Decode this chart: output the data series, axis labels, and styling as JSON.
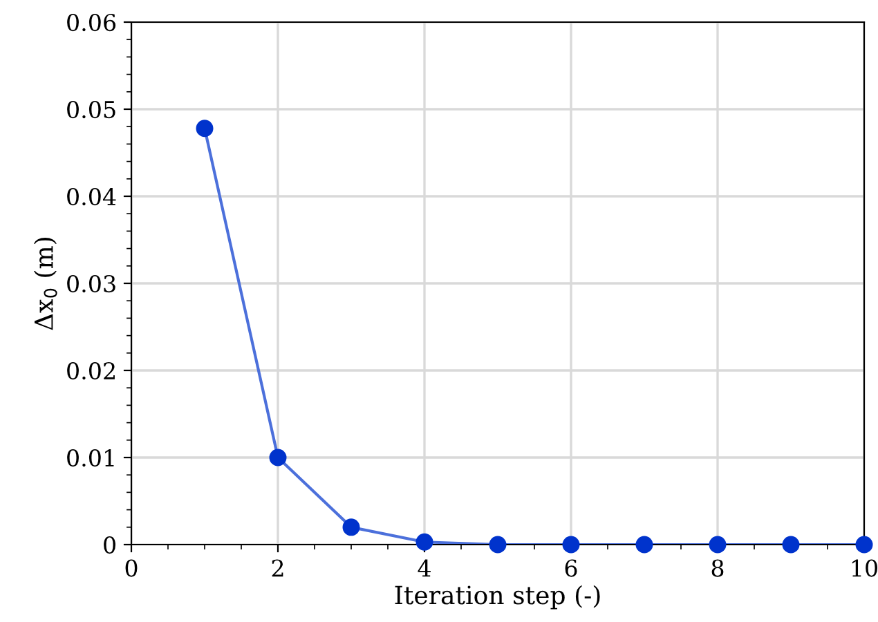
{
  "chart_data": {
    "type": "line",
    "xlabel": "Iteration step (-)",
    "ylabel": "Δx$_{0}$ (m)",
    "x": [
      1,
      2,
      3,
      4,
      5,
      6,
      7,
      8,
      9,
      10
    ],
    "series": [
      {
        "color": "#0033cc",
        "values": [
          0.0478,
          0.01,
          0.002,
          0.0003,
          0,
          0,
          0,
          0,
          0,
          0
        ]
      }
    ],
    "xlim": [
      0,
      10
    ],
    "xticks": [
      0,
      2,
      4,
      6,
      8,
      10
    ],
    "ylim": [
      0,
      0.06
    ],
    "yticks": [
      0,
      0.01,
      0.02,
      0.03,
      0.04,
      0.05,
      0.06
    ],
    "grid": true,
    "marker": "circle",
    "line_style": "solid"
  }
}
